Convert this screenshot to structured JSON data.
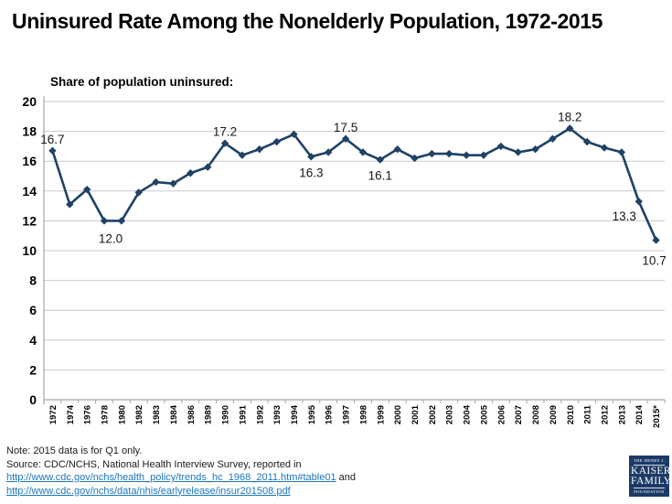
{
  "page": {
    "title": "Uninsured Rate Among the Nonelderly Population, 1972-2015"
  },
  "chart_data": {
    "type": "line",
    "title": "Uninsured Rate Among the Nonelderly Population, 1972-2015",
    "subtitle": "Share of population uninsured:",
    "categories": [
      "1972",
      "1974",
      "1976",
      "1978",
      "1980",
      "1982",
      "1983",
      "1984",
      "1986",
      "1989",
      "1990",
      "1991",
      "1992",
      "1993",
      "1994",
      "1995",
      "1996",
      "1997",
      "1998",
      "1999",
      "2000",
      "2001",
      "2002",
      "2003",
      "2004",
      "2005",
      "2006",
      "2007",
      "2008",
      "2009",
      "2010",
      "2011",
      "2012",
      "2013",
      "2014",
      "2015*"
    ],
    "values": [
      16.7,
      13.1,
      14.1,
      12.0,
      12.0,
      13.9,
      14.6,
      14.5,
      15.2,
      15.6,
      17.2,
      16.4,
      16.8,
      17.3,
      17.8,
      16.3,
      16.6,
      17.5,
      16.6,
      16.1,
      16.8,
      16.2,
      16.5,
      16.5,
      16.4,
      16.4,
      17.0,
      16.6,
      16.8,
      17.5,
      18.2,
      17.3,
      16.9,
      16.6,
      13.3,
      10.7
    ],
    "xlabel": "",
    "ylabel": "",
    "ylim": [
      0,
      20
    ],
    "ytick_step": 2,
    "grid": true,
    "legend": "none",
    "line_color": "#1F4265",
    "grid_color": "#C9C9C9",
    "axis_color": "#A6A6A6",
    "label_color": "#171717",
    "annotations": [
      {
        "category": "1972",
        "text": "16.7",
        "placement": "above"
      },
      {
        "category": "1978",
        "text": "12.0",
        "placement": "below-right"
      },
      {
        "category": "1990",
        "text": "17.2",
        "placement": "above"
      },
      {
        "category": "1995",
        "text": "16.3",
        "placement": "below"
      },
      {
        "category": "1997",
        "text": "17.5",
        "placement": "above"
      },
      {
        "category": "1999",
        "text": "16.1",
        "placement": "below"
      },
      {
        "category": "2010",
        "text": "18.2",
        "placement": "above"
      },
      {
        "category": "2014",
        "text": "13.3",
        "placement": "below-left"
      },
      {
        "category": "2015*",
        "text": "10.7",
        "placement": "below-far"
      }
    ]
  },
  "footer": {
    "note": "Note: 2015 data is for Q1 only.",
    "source_line": "Source: CDC/NCHS, National Health Interview Survey, reported in",
    "link1": "http://www.cdc.gov/nchs/health_policy/trends_hc_1968_2011.htm#table01",
    "link1_suffix": " and",
    "link2": "http://www.cdc.gov/nchs/data/nhis/earlyrelease/insur201508.pdf"
  },
  "logo": {
    "line1": "THE HENRY J.",
    "line2": "KAISER",
    "line3": "FAMILY",
    "line4": "FOUNDATION",
    "bg": "#1B3A67"
  }
}
